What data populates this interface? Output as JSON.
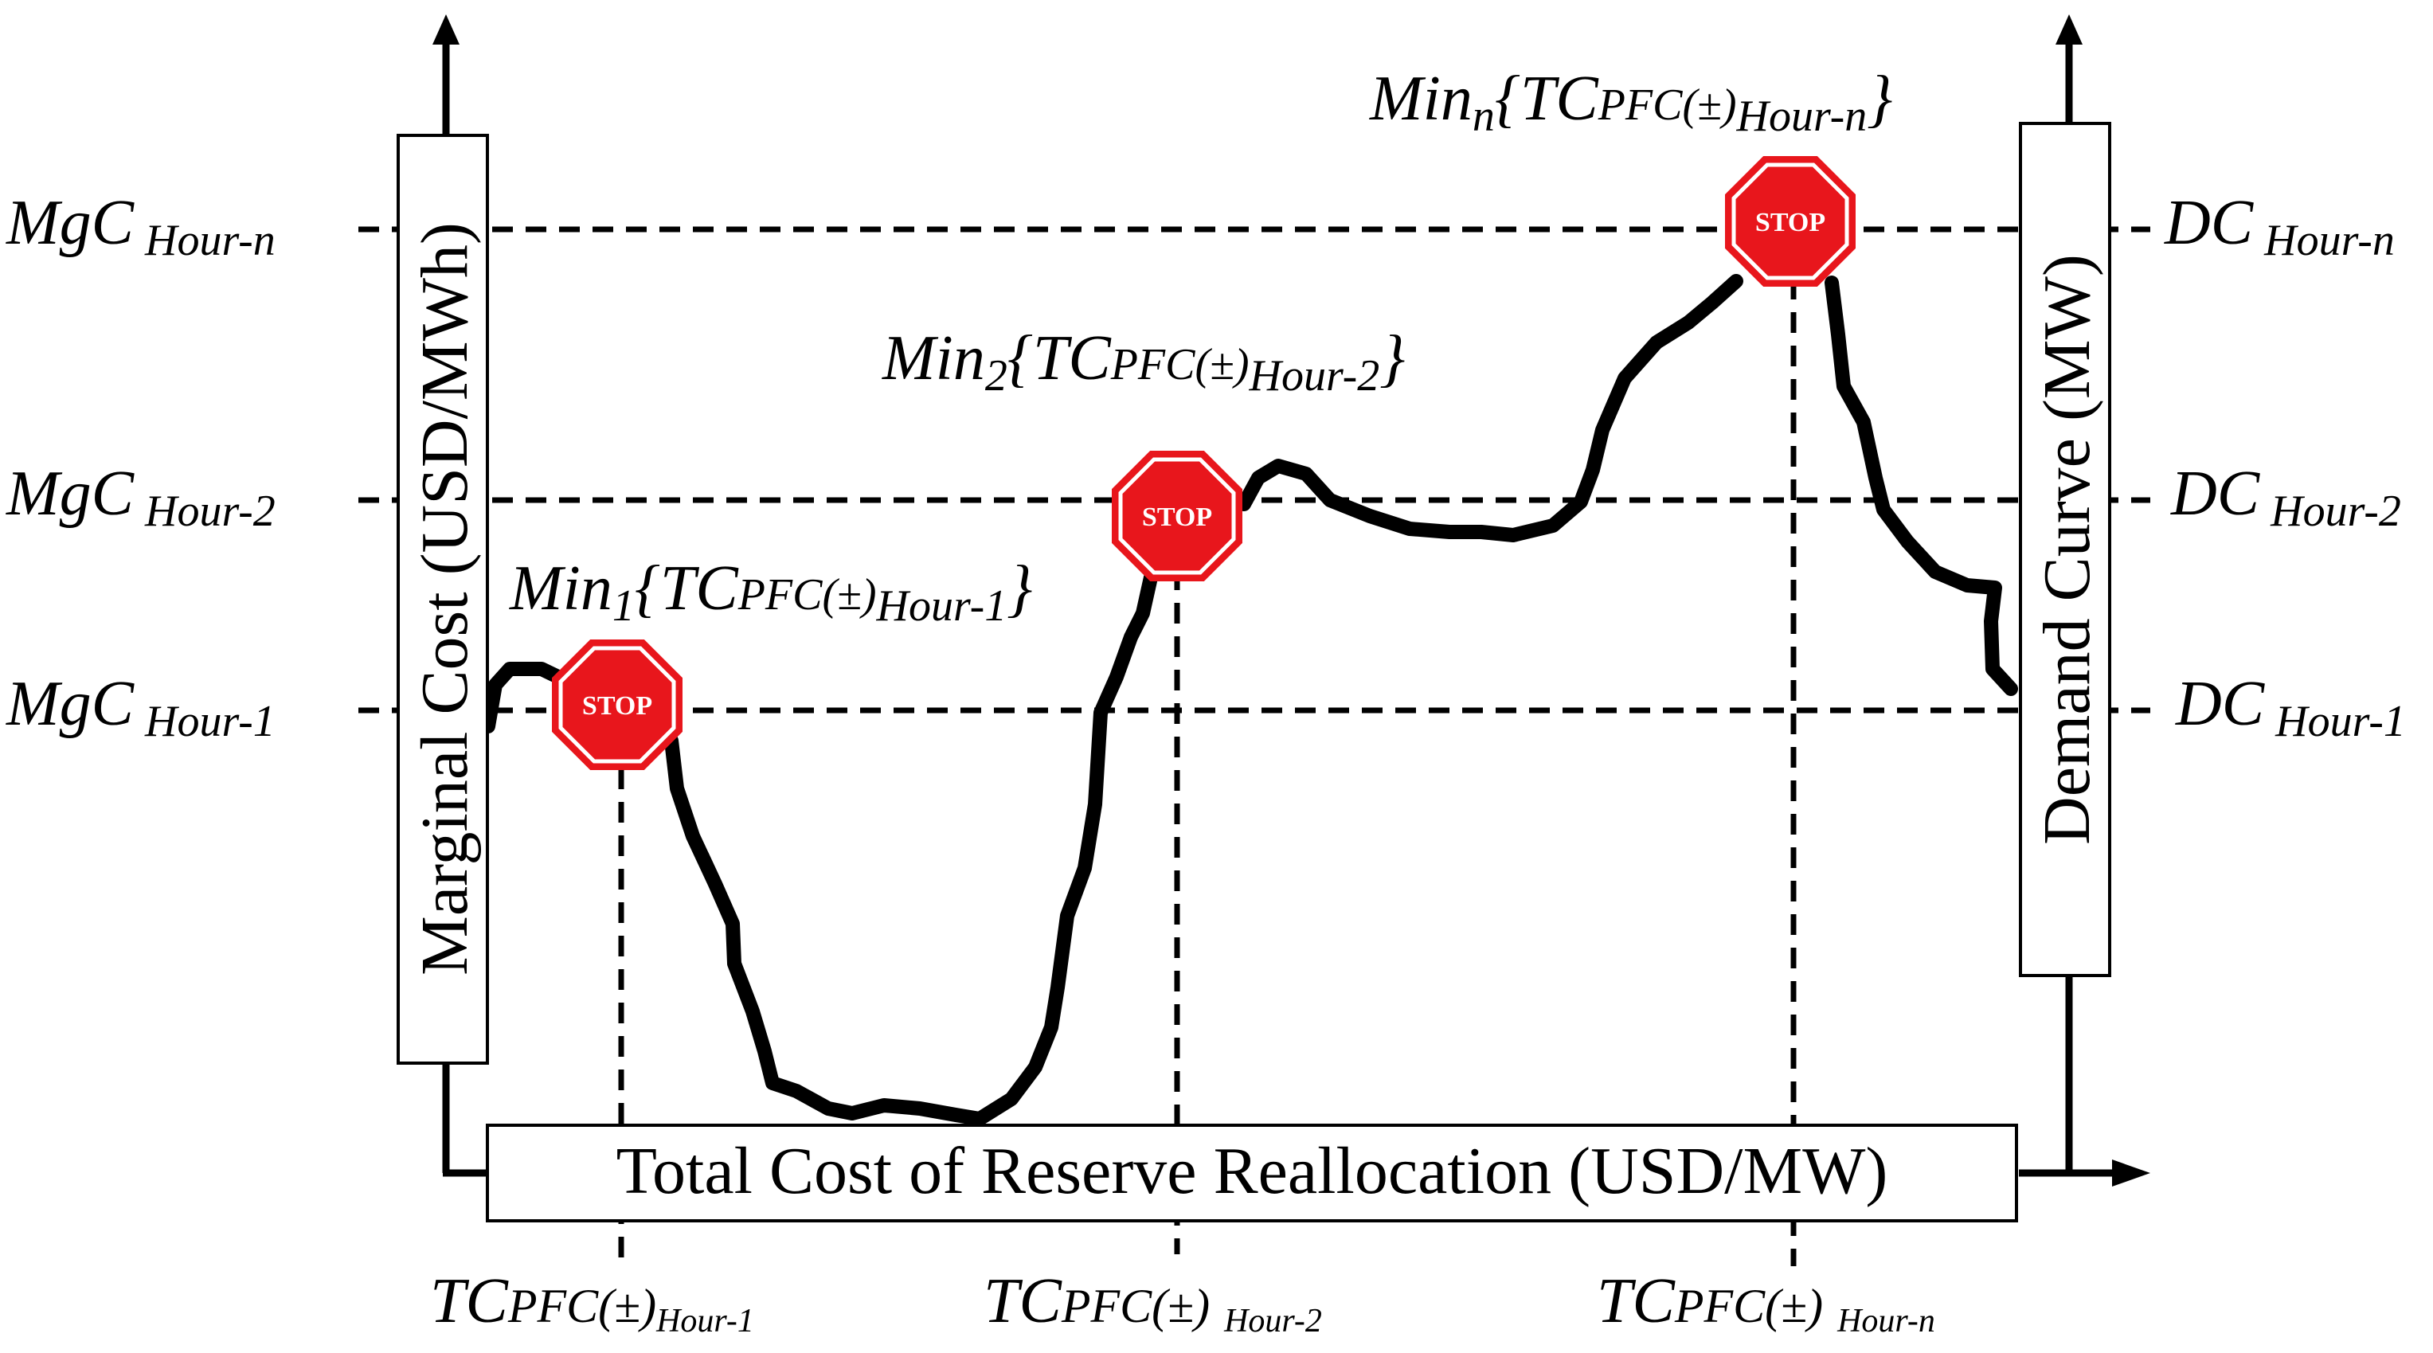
{
  "left_axis": {
    "title": "Marginal Cost (USD/MWh)",
    "levels": [
      {
        "main": "MgC",
        "sub": "Hour-1"
      },
      {
        "main": "MgC",
        "sub": "Hour-2"
      },
      {
        "main": "MgC",
        "sub": "Hour-n"
      }
    ]
  },
  "right_axis": {
    "title": "Demand Curve (MW)",
    "levels": [
      {
        "main": "DC",
        "sub": "Hour-1"
      },
      {
        "main": "DC",
        "sub": "Hour-2"
      },
      {
        "main": "DC",
        "sub": "Hour-n"
      }
    ]
  },
  "x_axis": {
    "title": "Total Cost of Reserve Reallocation (USD/MW)",
    "markers": [
      {
        "main": "TC",
        "mid": "PFC(±)",
        "sub": "Hour-1"
      },
      {
        "main": "TC",
        "mid": "PFC(±)",
        "sub": "Hour-2"
      },
      {
        "main": "TC",
        "mid": "PFC(±)",
        "sub": "Hour-n"
      }
    ]
  },
  "minima": [
    {
      "min": "Min",
      "index": "1",
      "open": "{TC",
      "mid": "PFC(±)",
      "sub": "Hour-1",
      "close": "}"
    },
    {
      "min": "Min",
      "index": "2",
      "open": "{TC",
      "mid": "PFC(±)",
      "sub": "Hour-2",
      "close": "}"
    },
    {
      "min": "Min",
      "index": "n",
      "open": "{TC",
      "mid": "PFC(±)",
      "sub": "Hour-n",
      "close": "}"
    }
  ],
  "stop_sign_label": "STOP",
  "colors": {
    "stop_fill": "#e8161c",
    "stop_border": "#ffffff",
    "curve": "#000000",
    "dashed": "#000000"
  }
}
